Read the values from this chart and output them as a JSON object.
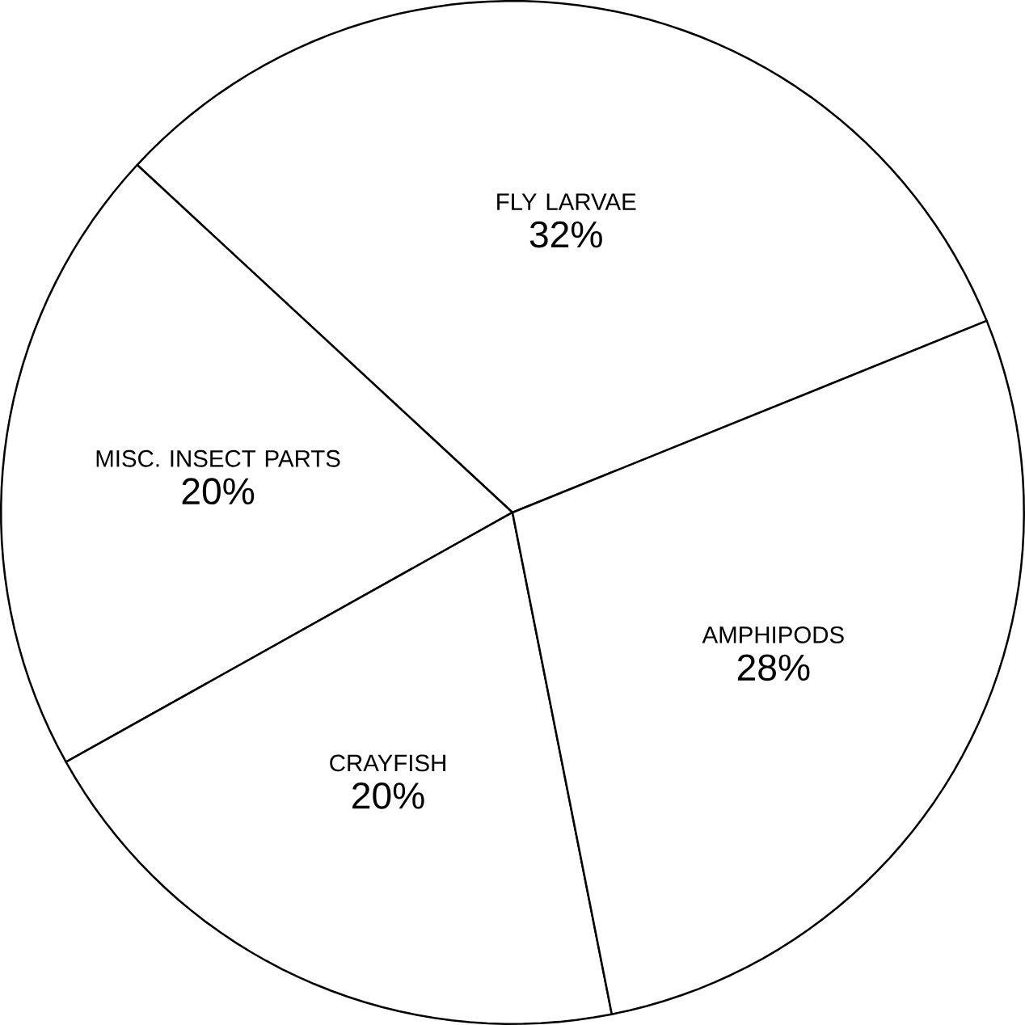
{
  "chart_data": {
    "type": "pie",
    "categories": [
      "FLY LARVAE",
      "MISC. INSECT PARTS",
      "CRAYFISH",
      "AMPHIPODS"
    ],
    "values": [
      32,
      20,
      20,
      28
    ],
    "value_labels": [
      "32%",
      "20%",
      "20%",
      "28%"
    ],
    "colors": [
      "#ffffff",
      "#ffffff",
      "#ffffff",
      "#ffffff"
    ]
  }
}
